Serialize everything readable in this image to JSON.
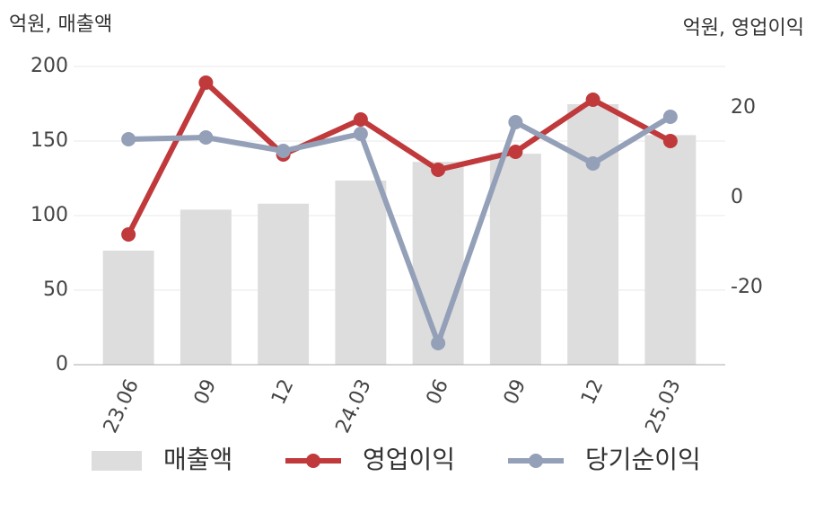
{
  "chart_data": {
    "type": "bar_line",
    "y_label": "억원, 매출액",
    "y2_label": "억원, 영업이익",
    "categories": [
      "23.06",
      "09",
      "12",
      "24.03",
      "06",
      "09",
      "12",
      "25.03"
    ],
    "ylim": [
      0,
      200
    ],
    "yticks": [
      0,
      50,
      100,
      150,
      200
    ],
    "y2lim": [
      -37.2,
      29.2
    ],
    "y2ticks": [
      -20,
      0,
      20
    ],
    "grid": true,
    "legend": "bottom",
    "series": [
      {
        "name": "매출액",
        "type": "bar",
        "color": "#dddddd",
        "values": [
          76.5,
          104,
          108,
          123.5,
          136,
          141.5,
          174.7,
          154
        ]
      },
      {
        "name": "영업이익",
        "type": "line",
        "axis": "y2",
        "color": "#c0393b",
        "values": [
          -8.2,
          25.6,
          9.6,
          17.4,
          6.2,
          10.2,
          21.8,
          12.6
        ]
      },
      {
        "name": "당기순이익",
        "type": "line",
        "axis": "y2",
        "color": "#94a0b8",
        "values": [
          13,
          13.4,
          10.4,
          14.2,
          -32.4,
          16.8,
          7.6,
          18
        ]
      }
    ]
  }
}
